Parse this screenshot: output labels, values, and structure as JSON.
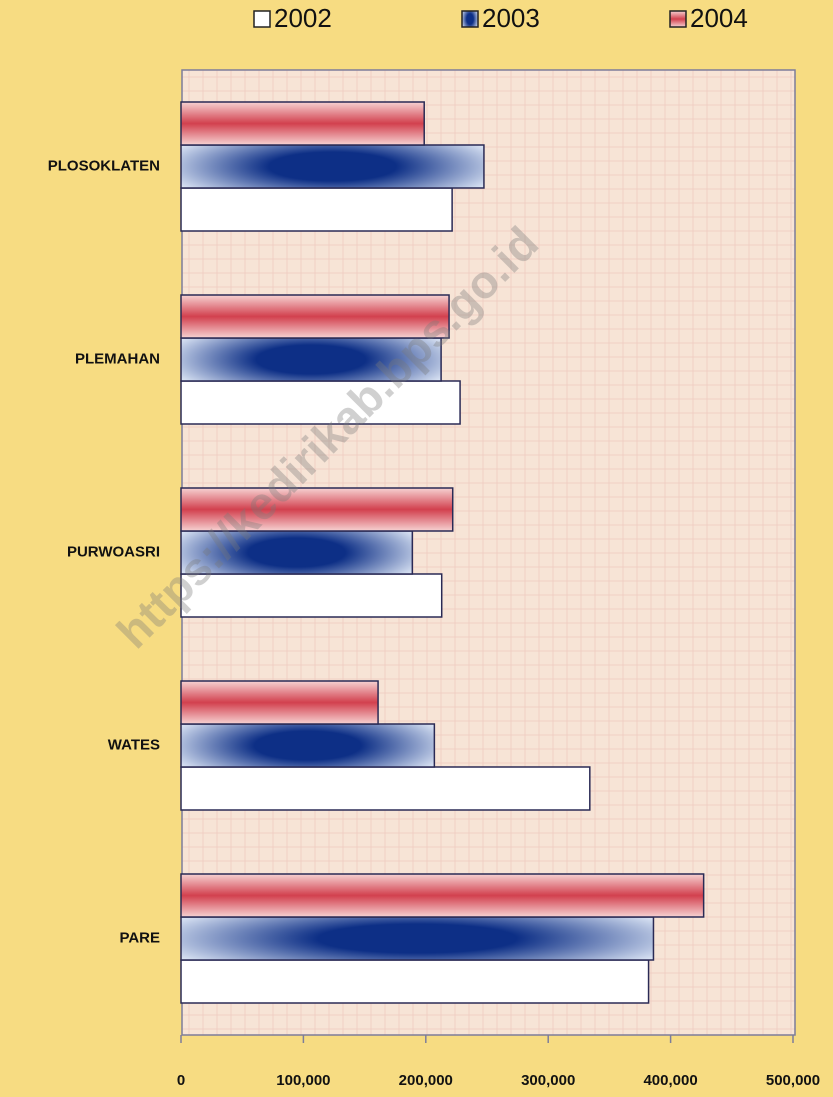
{
  "chart_data": {
    "type": "hbar",
    "categories": [
      "PLOSOKLATEN",
      "PLEMAHAN",
      "PURWOASRI",
      "WATES",
      "PARE"
    ],
    "series": [
      {
        "name": "2002",
        "color": "#ffffff",
        "values": [
          221500,
          228000,
          213000,
          334000,
          382000
        ]
      },
      {
        "name": "2003",
        "color": "#0d2f86",
        "values": [
          247500,
          212500,
          189000,
          207000,
          386000
        ]
      },
      {
        "name": "2004",
        "color": "#d2404e",
        "values": [
          198700,
          219000,
          222000,
          161000,
          427000
        ]
      }
    ],
    "xlim": [
      0,
      500000
    ],
    "xticks": [
      {
        "value": 0,
        "label": "0"
      },
      {
        "value": 100000,
        "label": "100,000"
      },
      {
        "value": 200000,
        "label": "200,000"
      },
      {
        "value": 300000,
        "label": "300,000"
      },
      {
        "value": 400000,
        "label": "400,000"
      },
      {
        "value": 500000,
        "label": "500,000"
      }
    ],
    "grid": false,
    "legend": "top",
    "watermark": "https://kedirikab.bps.go.id"
  }
}
